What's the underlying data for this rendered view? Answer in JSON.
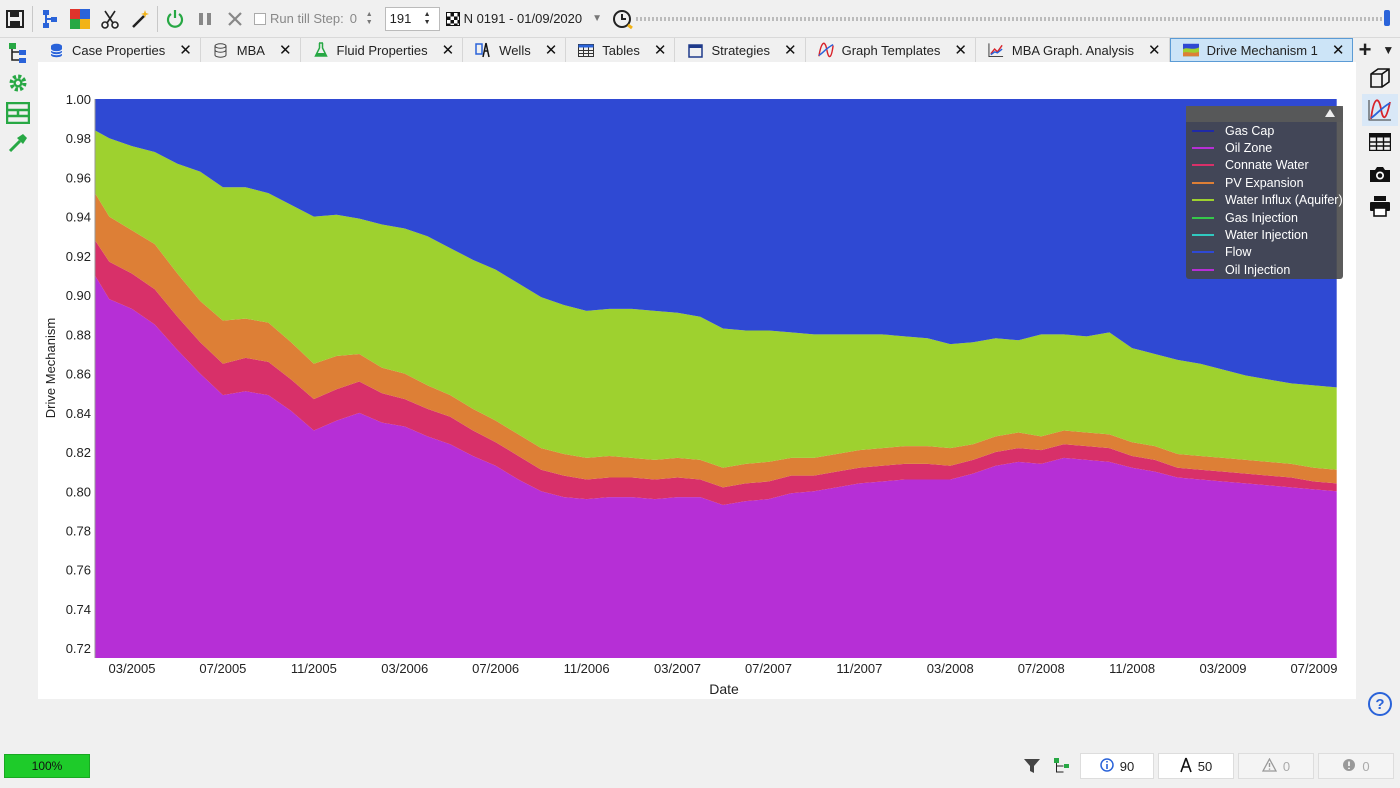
{
  "toolbar": {
    "run_till_label": "Run till Step:",
    "run_till_value": "0",
    "step_value": "191",
    "date_selection": "N 0191 - 01/09/2020",
    "icons": [
      "save-icon",
      "model-tree-icon",
      "components-icon",
      "scissors-icon",
      "magic-wand-icon",
      "power-icon",
      "pause-icon",
      "stop-icon",
      "clock-icon"
    ]
  },
  "left_sidebar": {
    "icons": [
      "hierarchy-icon",
      "gear-icon",
      "layout-icon",
      "hammer-icon"
    ]
  },
  "tabs": [
    {
      "label": "Case Properties",
      "icon": "database-icon",
      "active": false
    },
    {
      "label": "MBA",
      "icon": "cylinder-icon",
      "active": false
    },
    {
      "label": "Fluid Properties",
      "icon": "flask-icon",
      "active": false
    },
    {
      "label": "Wells",
      "icon": "well-icon",
      "active": false
    },
    {
      "label": "Tables",
      "icon": "table-icon",
      "active": false
    },
    {
      "label": "Strategies",
      "icon": "calendar-icon",
      "active": false
    },
    {
      "label": "Graph Templates",
      "icon": "graph-icon",
      "active": false
    },
    {
      "label": "MBA Graph. Analysis",
      "icon": "chart-icon",
      "active": false
    },
    {
      "label": "Drive Mechanism 1",
      "icon": "area-chart-icon",
      "active": true
    }
  ],
  "right_sidebar": {
    "icons": [
      "cube-icon",
      "curve-icon",
      "table-icon",
      "camera-icon",
      "printer-icon"
    ],
    "help": "?"
  },
  "chart_data": {
    "type": "area",
    "title": "",
    "xlabel": "Date",
    "ylabel": "Drive Mechanism",
    "ylim": [
      0.715,
      1.0
    ],
    "yticks": [
      "1.00",
      "0.98",
      "0.96",
      "0.94",
      "0.92",
      "0.90",
      "0.88",
      "0.86",
      "0.84",
      "0.82",
      "0.80",
      "0.78",
      "0.76",
      "0.74",
      "0.72"
    ],
    "xticks": [
      "03/2005",
      "07/2005",
      "11/2005",
      "03/2006",
      "07/2006",
      "11/2006",
      "03/2007",
      "07/2007",
      "11/2007",
      "03/2008",
      "07/2008",
      "11/2008",
      "03/2009",
      "07/2009"
    ],
    "x": [
      "01/2005",
      "02/2005",
      "03/2005",
      "04/2005",
      "05/2005",
      "06/2005",
      "07/2005",
      "08/2005",
      "09/2005",
      "10/2005",
      "11/2005",
      "12/2005",
      "01/2006",
      "02/2006",
      "03/2006",
      "04/2006",
      "05/2006",
      "06/2006",
      "07/2006",
      "08/2006",
      "09/2006",
      "10/2006",
      "11/2006",
      "12/2006",
      "01/2007",
      "02/2007",
      "03/2007",
      "04/2007",
      "05/2007",
      "06/2007",
      "07/2007",
      "08/2007",
      "09/2007",
      "10/2007",
      "11/2007",
      "12/2007",
      "01/2008",
      "02/2008",
      "03/2008",
      "04/2008",
      "05/2008",
      "06/2008",
      "07/2008",
      "08/2008",
      "09/2008",
      "10/2008",
      "11/2008",
      "12/2008",
      "01/2009",
      "02/2009",
      "03/2009",
      "04/2009",
      "05/2009",
      "06/2009",
      "07/2009",
      "08/2009"
    ],
    "series": [
      {
        "name": "Oil Zone",
        "color": "#b62fd6",
        "values": [
          0.91,
          0.898,
          0.893,
          0.885,
          0.872,
          0.86,
          0.849,
          0.851,
          0.849,
          0.841,
          0.831,
          0.836,
          0.84,
          0.835,
          0.833,
          0.828,
          0.824,
          0.818,
          0.813,
          0.806,
          0.8,
          0.797,
          0.796,
          0.797,
          0.797,
          0.796,
          0.797,
          0.797,
          0.793,
          0.795,
          0.796,
          0.799,
          0.8,
          0.802,
          0.804,
          0.805,
          0.806,
          0.806,
          0.806,
          0.809,
          0.813,
          0.815,
          0.814,
          0.817,
          0.816,
          0.815,
          0.812,
          0.81,
          0.807,
          0.806,
          0.805,
          0.804,
          0.803,
          0.802,
          0.801,
          0.8
        ]
      },
      {
        "name": "Connate Water",
        "color": "#d83069",
        "values": [
          0.018,
          0.019,
          0.018,
          0.018,
          0.017,
          0.016,
          0.016,
          0.017,
          0.017,
          0.016,
          0.016,
          0.016,
          0.016,
          0.015,
          0.014,
          0.014,
          0.014,
          0.013,
          0.012,
          0.012,
          0.011,
          0.011,
          0.01,
          0.01,
          0.01,
          0.01,
          0.01,
          0.009,
          0.009,
          0.009,
          0.009,
          0.009,
          0.008,
          0.008,
          0.008,
          0.008,
          0.008,
          0.008,
          0.007,
          0.007,
          0.007,
          0.007,
          0.007,
          0.007,
          0.007,
          0.007,
          0.006,
          0.006,
          0.005,
          0.005,
          0.005,
          0.005,
          0.005,
          0.005,
          0.004,
          0.004
        ]
      },
      {
        "name": "PV Expansion",
        "color": "#dd7f36",
        "values": [
          0.024,
          0.023,
          0.022,
          0.023,
          0.022,
          0.021,
          0.022,
          0.02,
          0.02,
          0.019,
          0.018,
          0.017,
          0.014,
          0.013,
          0.013,
          0.012,
          0.011,
          0.011,
          0.011,
          0.011,
          0.011,
          0.011,
          0.011,
          0.011,
          0.01,
          0.01,
          0.01,
          0.01,
          0.01,
          0.01,
          0.01,
          0.009,
          0.009,
          0.009,
          0.009,
          0.009,
          0.009,
          0.009,
          0.009,
          0.008,
          0.008,
          0.008,
          0.007,
          0.007,
          0.007,
          0.007,
          0.007,
          0.007,
          0.007,
          0.007,
          0.007,
          0.007,
          0.007,
          0.007,
          0.007,
          0.007
        ]
      },
      {
        "name": "Water Influx (Aquifer)",
        "color": "#9ed12f",
        "values": [
          0.032,
          0.04,
          0.043,
          0.047,
          0.056,
          0.066,
          0.068,
          0.067,
          0.066,
          0.07,
          0.075,
          0.072,
          0.069,
          0.073,
          0.074,
          0.076,
          0.075,
          0.076,
          0.077,
          0.077,
          0.077,
          0.076,
          0.075,
          0.075,
          0.076,
          0.076,
          0.074,
          0.073,
          0.071,
          0.068,
          0.067,
          0.064,
          0.063,
          0.061,
          0.059,
          0.058,
          0.056,
          0.055,
          0.053,
          0.052,
          0.05,
          0.047,
          0.052,
          0.049,
          0.049,
          0.052,
          0.048,
          0.047,
          0.048,
          0.047,
          0.045,
          0.043,
          0.042,
          0.041,
          0.042,
          0.042
        ]
      },
      {
        "name": "Gas Cap",
        "color": "#2f49d3",
        "values": [
          0.016,
          0.02,
          0.024,
          0.027,
          0.033,
          0.037,
          0.045,
          0.045,
          0.048,
          0.054,
          0.06,
          0.059,
          0.061,
          0.064,
          0.066,
          0.07,
          0.076,
          0.082,
          0.087,
          0.094,
          0.101,
          0.105,
          0.108,
          0.107,
          0.107,
          0.108,
          0.109,
          0.111,
          0.117,
          0.118,
          0.118,
          0.119,
          0.12,
          0.12,
          0.12,
          0.12,
          0.121,
          0.122,
          0.125,
          0.124,
          0.122,
          0.123,
          0.12,
          0.12,
          0.121,
          0.119,
          0.127,
          0.13,
          0.133,
          0.135,
          0.138,
          0.141,
          0.143,
          0.145,
          0.146,
          0.147
        ]
      }
    ],
    "legend": {
      "placement": "top-right",
      "entries": [
        {
          "name": "Gas Cap",
          "color": "#1f2aa8"
        },
        {
          "name": "Oil Zone",
          "color": "#b62fd6"
        },
        {
          "name": "Connate Water",
          "color": "#d83069"
        },
        {
          "name": "PV Expansion",
          "color": "#dd7f36"
        },
        {
          "name": "Water Influx (Aquifer)",
          "color": "#9ed12f"
        },
        {
          "name": "Gas Injection",
          "color": "#35c84a"
        },
        {
          "name": "Water Injection",
          "color": "#30c9c0"
        },
        {
          "name": "Flow",
          "color": "#2f49d3"
        },
        {
          "name": "Oil Injection",
          "color": "#b62fd6"
        }
      ]
    },
    "grid": false
  },
  "statusbar": {
    "progress": "100%",
    "info_count": "90",
    "wells_count": "50",
    "warnings_count": "0",
    "errors_count": "0"
  }
}
